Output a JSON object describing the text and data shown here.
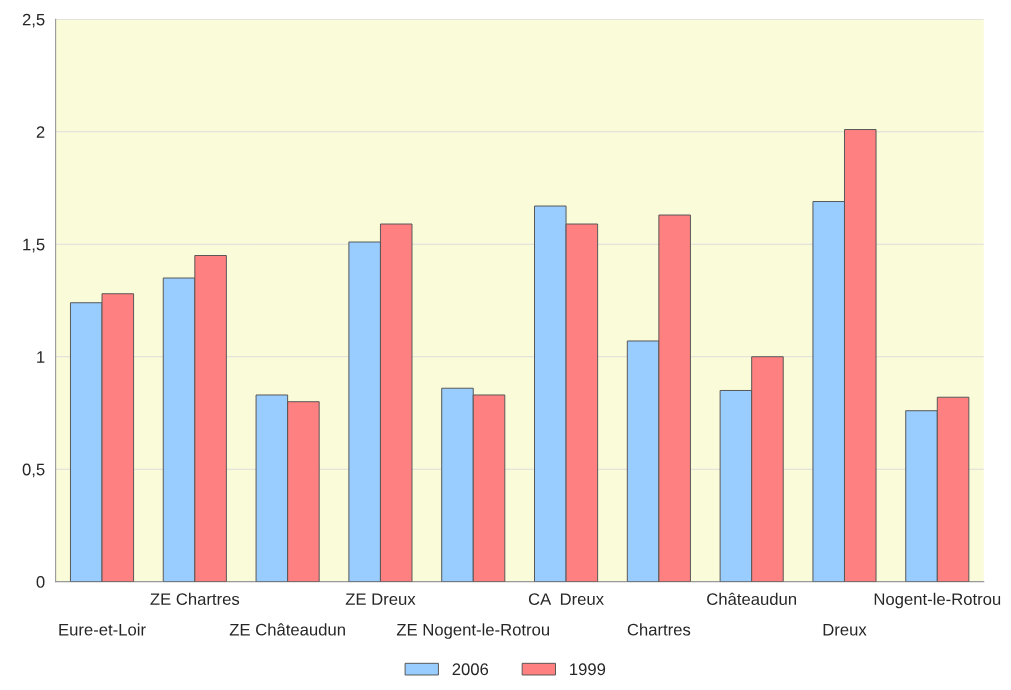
{
  "chart_data": {
    "type": "bar",
    "categories": [
      "Eure-et-Loir",
      "ZE Chartres",
      "ZE Châteaudun",
      "ZE Dreux",
      "ZE Nogent-le-Rotrou",
      "CA  Dreux",
      "Chartres",
      "Châteaudun",
      "Dreux",
      "Nogent-le-Rotrou"
    ],
    "series": [
      {
        "name": "2006",
        "color": "#99ccff",
        "values": [
          1.24,
          1.35,
          0.83,
          1.51,
          0.86,
          1.67,
          1.07,
          0.85,
          1.69,
          0.76
        ]
      },
      {
        "name": "1999",
        "color": "#ff8080",
        "values": [
          1.28,
          1.45,
          0.8,
          1.59,
          0.83,
          1.59,
          1.63,
          1.0,
          2.01,
          0.82
        ]
      }
    ],
    "ylim": [
      0,
      2.5
    ],
    "yticks": [
      0,
      {
        "value": 0.5,
        "label": "0,5"
      },
      1,
      {
        "value": 1.5,
        "label": "1,5"
      },
      2,
      {
        "value": 2.5,
        "label": "2,5"
      }
    ],
    "grid": "y",
    "legend": "bottom"
  }
}
